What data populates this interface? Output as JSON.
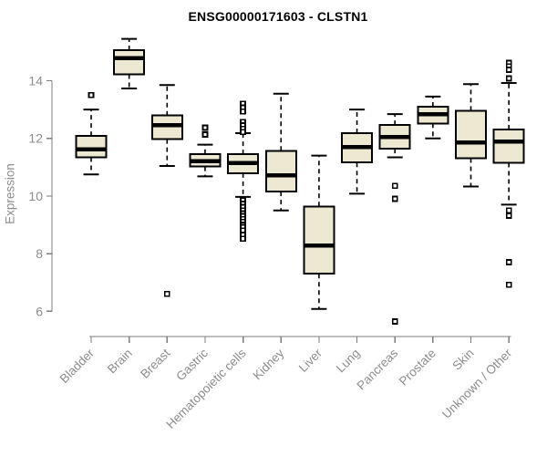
{
  "chart_data": {
    "type": "boxplot",
    "title": "ENSG00000171603 - CLSTN1",
    "ylabel": "Expression",
    "xlabel": "",
    "ylim": [
      5.2,
      15.7
    ],
    "yticks": [
      6,
      8,
      10,
      12,
      14
    ],
    "grid": false,
    "legend": "none",
    "categories": [
      "Bladder",
      "Brain",
      "Breast",
      "Gastric",
      "Hematopoietic cells",
      "Kidney",
      "Liver",
      "Lung",
      "Pancreas",
      "Prostate",
      "Skin",
      "Unknown / Other"
    ],
    "boxes": [
      {
        "category": "Bladder",
        "low": 10.75,
        "q1": 11.34,
        "median": 11.62,
        "q3": 12.08,
        "high": 13.0,
        "outliers": [
          13.5
        ]
      },
      {
        "category": "Brain",
        "low": 13.73,
        "q1": 14.22,
        "median": 14.79,
        "q3": 15.06,
        "high": 15.45,
        "outliers": []
      },
      {
        "category": "Breast",
        "low": 11.04,
        "q1": 11.97,
        "median": 12.46,
        "q3": 12.79,
        "high": 13.85,
        "outliers": [
          6.6
        ]
      },
      {
        "category": "Gastric",
        "low": 10.68,
        "q1": 11.02,
        "median": 11.21,
        "q3": 11.46,
        "high": 11.78,
        "outliers": [
          12.37,
          12.13
        ]
      },
      {
        "category": "Hematopoietic cells",
        "low": 9.97,
        "q1": 10.79,
        "median": 11.15,
        "q3": 11.45,
        "high": 12.18,
        "outliers": [
          13.2,
          13.07,
          12.93,
          12.57,
          12.45,
          12.33,
          12.22,
          9.85,
          9.73,
          9.62,
          9.5,
          9.4,
          9.3,
          9.2,
          9.1,
          9.0,
          8.92,
          8.8,
          8.65,
          8.52
        ]
      },
      {
        "category": "Kidney",
        "low": 9.5,
        "q1": 10.15,
        "median": 10.72,
        "q3": 11.57,
        "high": 13.55,
        "outliers": []
      },
      {
        "category": "Liver",
        "low": 6.08,
        "q1": 7.3,
        "median": 8.28,
        "q3": 9.64,
        "high": 11.4,
        "outliers": []
      },
      {
        "category": "Lung",
        "low": 10.08,
        "q1": 11.16,
        "median": 11.7,
        "q3": 12.18,
        "high": 13.0,
        "outliers": []
      },
      {
        "category": "Pancreas",
        "low": 11.34,
        "q1": 11.64,
        "median": 12.05,
        "q3": 12.46,
        "high": 12.84,
        "outliers": [
          10.35,
          9.9,
          5.65
        ]
      },
      {
        "category": "Prostate",
        "low": 12.0,
        "q1": 12.52,
        "median": 12.84,
        "q3": 13.1,
        "high": 13.45,
        "outliers": []
      },
      {
        "category": "Skin",
        "low": 10.33,
        "q1": 11.31,
        "median": 11.86,
        "q3": 12.96,
        "high": 13.88,
        "outliers": []
      },
      {
        "category": "Unknown / Other",
        "low": 9.7,
        "q1": 11.15,
        "median": 11.88,
        "q3": 12.31,
        "high": 13.92,
        "outliers": [
          14.62,
          14.5,
          14.38,
          14.08,
          9.5,
          9.32,
          7.7,
          6.92
        ]
      }
    ],
    "colors": {
      "box_fill": "#EDE8D1",
      "box_border": "#000000",
      "median": "#000000",
      "whisker": "#000000",
      "axis": "#7d7d7d",
      "tick_label": "#8c8c8c",
      "title": "#000000",
      "background": "#ffffff"
    }
  }
}
